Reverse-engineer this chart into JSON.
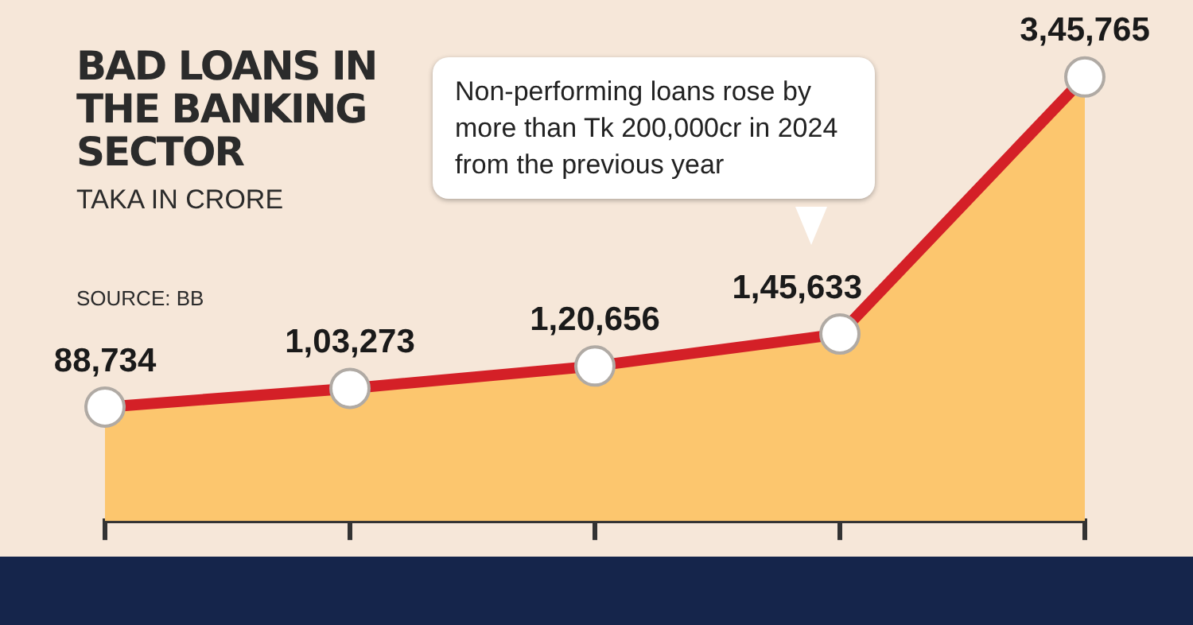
{
  "chart_data": {
    "type": "area",
    "title": "BAD LOANS IN THE BANKING SECTOR",
    "subtitle": "TAKA IN CRORE",
    "annotations": [
      "SOURCE: BB",
      "Non-performing loans rose by more than Tk 200,000cr in 2024 from the previous year"
    ],
    "categories": [
      null,
      null,
      null,
      null,
      null
    ],
    "series": [
      {
        "color": "#d42027",
        "values": [
          88734,
          103273,
          120656,
          145633,
          345765
        ],
        "value_labels": [
          "88,734",
          "1,03,273",
          "1,20,656",
          "1,45,633",
          "3,45,765"
        ]
      }
    ],
    "grid": false,
    "legend": false,
    "marker": "circle",
    "line_style": "solid"
  }
}
